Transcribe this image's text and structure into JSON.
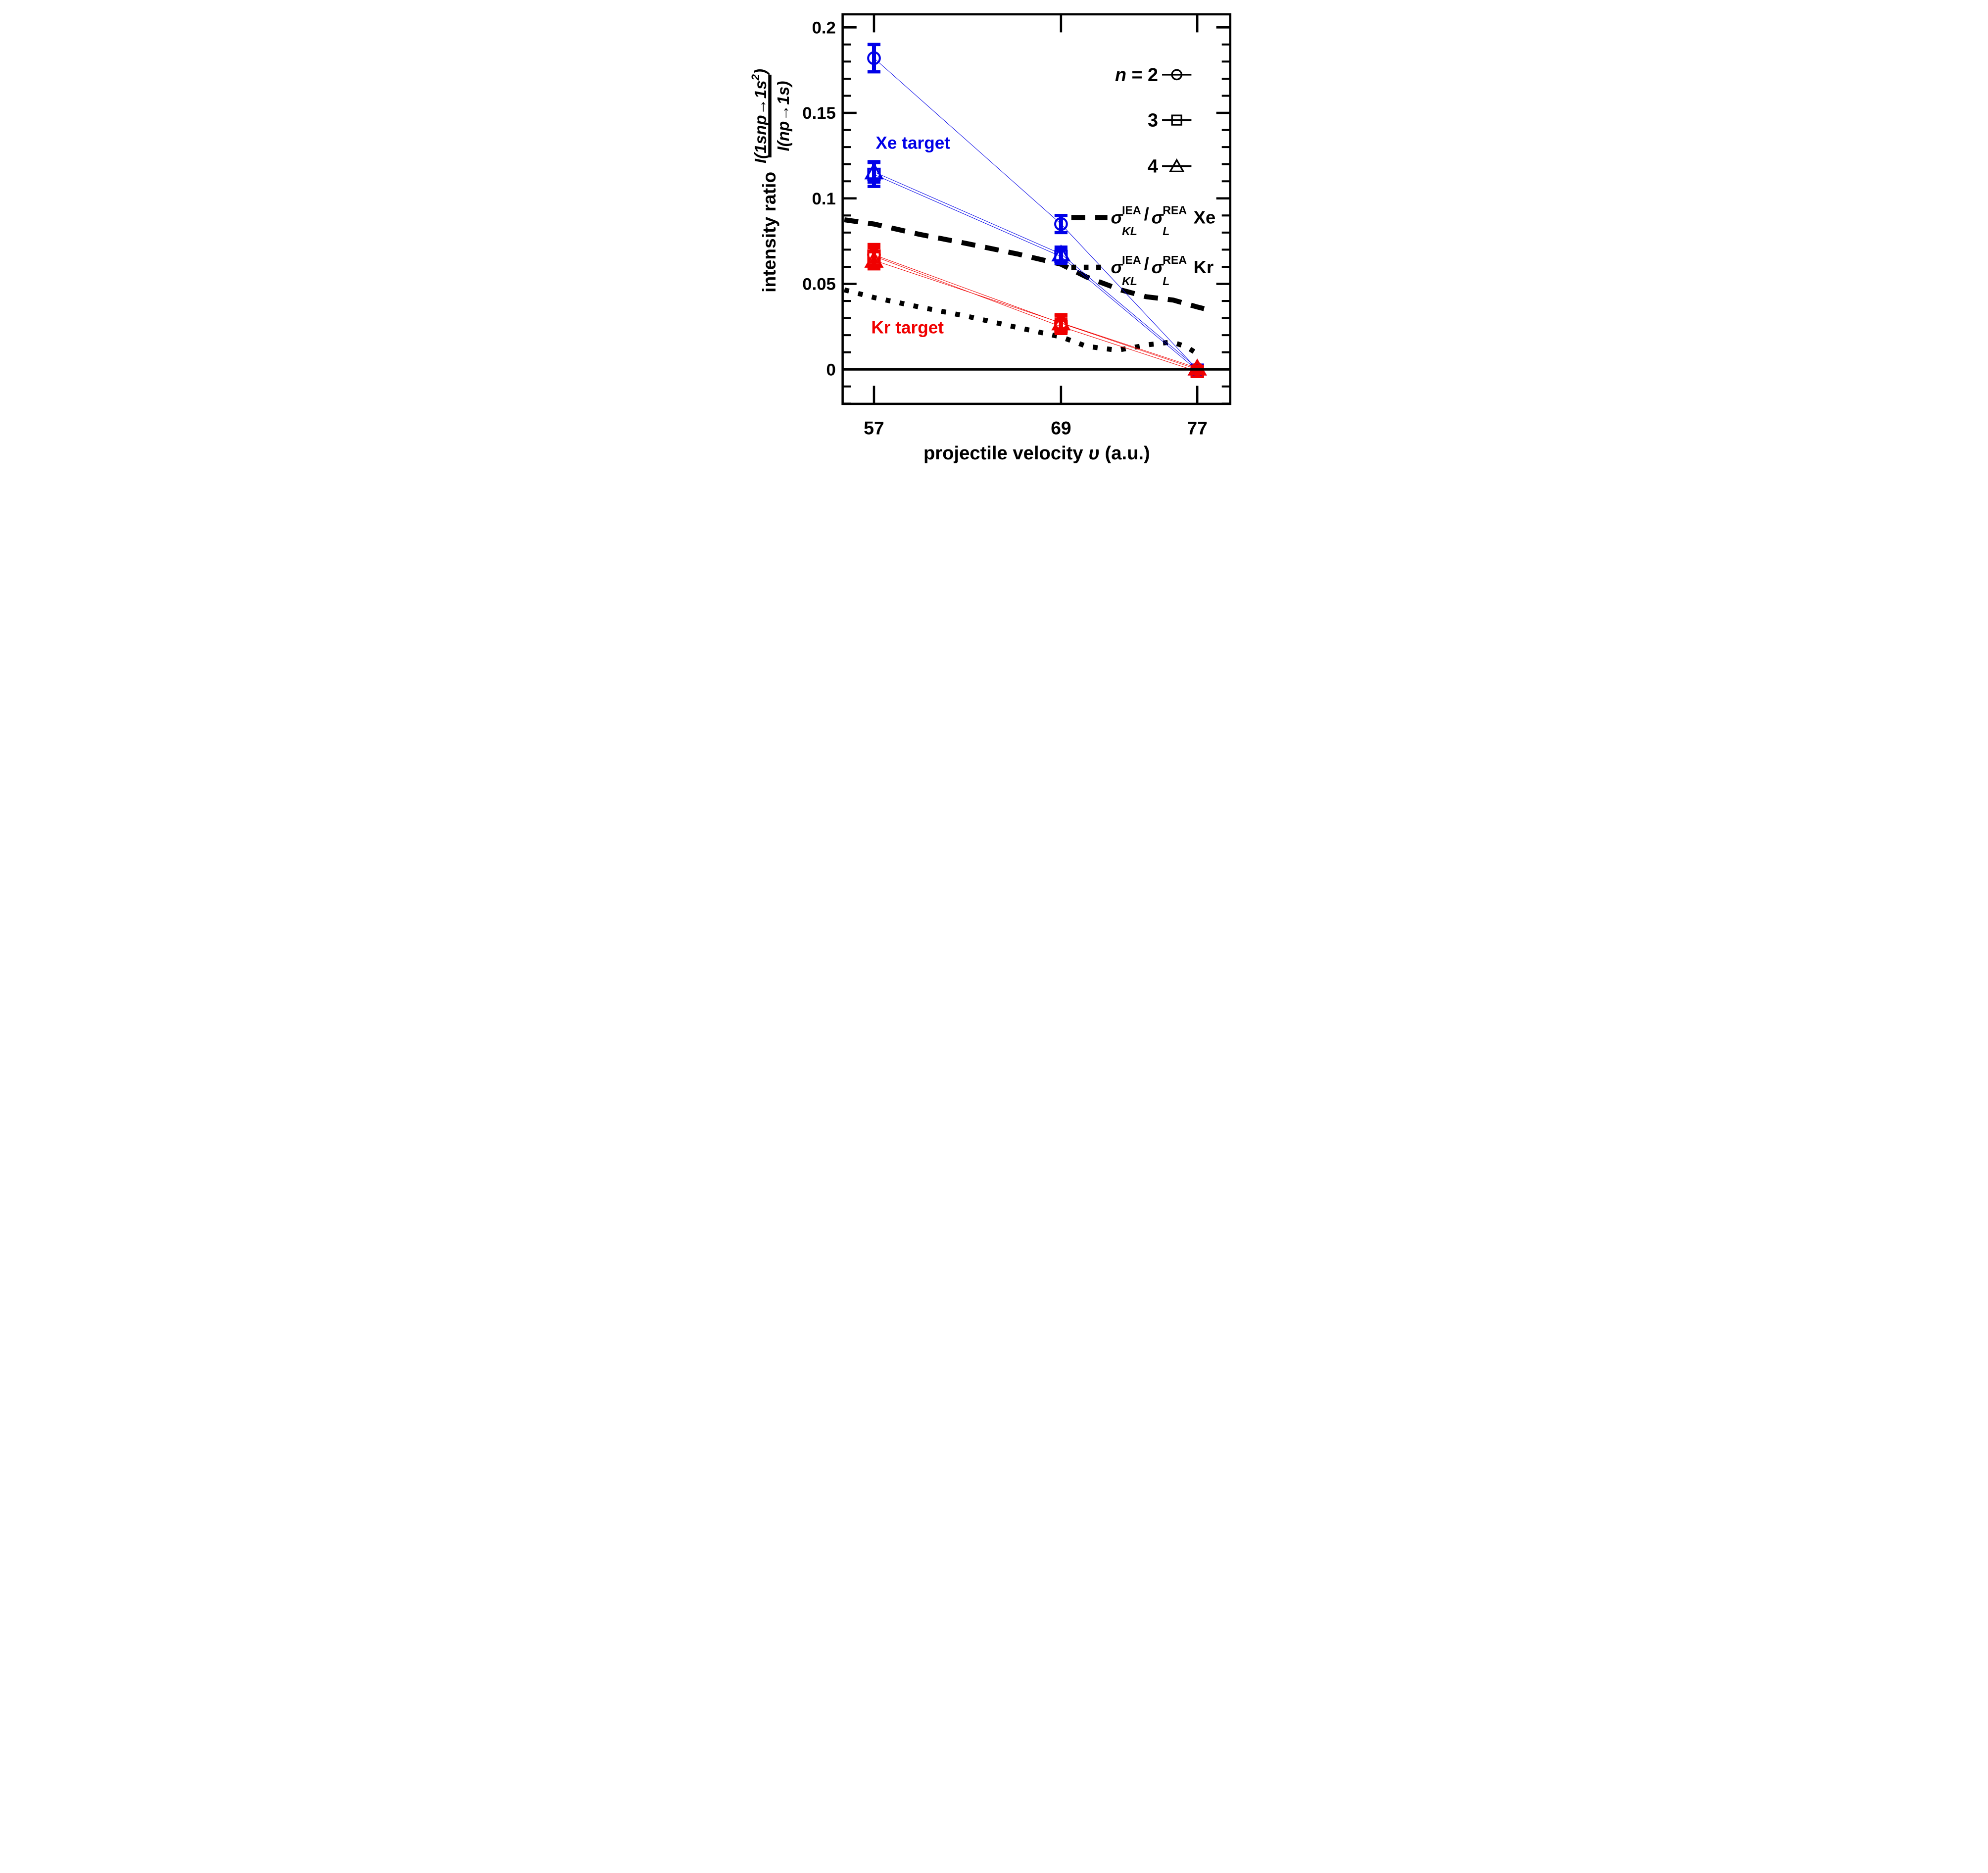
{
  "chart_data": {
    "type": "scatter",
    "title": "",
    "xlabel": {
      "prefix": "projectile velocity ",
      "symbol": "υ",
      "suffix": " (a.u.)"
    },
    "ylabel": {
      "prefix": "intensity ratio",
      "frac_numerator": "I(1snp→1s",
      "frac_numerator_sup": "2",
      "frac_numerator_close": ")",
      "frac_denominator": "I(np→1s)"
    },
    "x_tick_labels": [
      "57",
      "69",
      "77"
    ],
    "x_tick_values": [
      57,
      69,
      77
    ],
    "y_tick_labels": [
      "0.2",
      "0.15",
      "0.1",
      "0.05",
      "0"
    ],
    "y_tick_values": [
      0.2,
      0.15,
      0.1,
      0.05,
      0
    ],
    "y_minor_step": 0.01,
    "ylim": [
      -0.02,
      0.208
    ],
    "grid": false,
    "legend_position": "upper right",
    "colors": {
      "xe": "#0000e8",
      "kr": "#f00000",
      "theory": "#000000"
    },
    "series": [
      {
        "name": "Xe target, n=2",
        "target": "Xe",
        "n": 2,
        "marker": "circle",
        "color": "#0000e8",
        "x": [
          57,
          69,
          77
        ],
        "y": [
          0.182,
          0.085,
          0.0
        ],
        "yerr": [
          0.008,
          0.005,
          0.0015
        ]
      },
      {
        "name": "Xe target, n=3",
        "target": "Xe",
        "n": 3,
        "marker": "square",
        "color": "#0000e8",
        "x": [
          57,
          69,
          77
        ],
        "y": [
          0.114,
          0.066,
          -0.0005
        ],
        "yerr": [
          0.007,
          0.004,
          0.0015
        ]
      },
      {
        "name": "Xe target, n=4",
        "target": "Xe",
        "n": 4,
        "marker": "triangle",
        "color": "#0000e8",
        "x": [
          57,
          69,
          77
        ],
        "y": [
          0.1155,
          0.0675,
          0.0008
        ],
        "yerr": [
          0.006,
          0.004,
          0.0015
        ]
      },
      {
        "name": "Kr target, n=2",
        "target": "Kr",
        "n": 2,
        "marker": "circle",
        "color": "#f00000",
        "x": [
          57,
          69,
          77
        ],
        "y": [
          0.067,
          0.027,
          0.0
        ],
        "yerr": [
          0.006,
          0.005,
          0.0015
        ]
      },
      {
        "name": "Kr target, n=3",
        "target": "Kr",
        "n": 3,
        "marker": "square",
        "color": "#f00000",
        "x": [
          57,
          69,
          77
        ],
        "y": [
          0.0662,
          0.025,
          -0.0012
        ],
        "yerr": [
          0.005,
          0.004,
          0.0015
        ]
      },
      {
        "name": "Kr target, n=4",
        "target": "Kr",
        "n": 4,
        "marker": "triangle",
        "color": "#f00000",
        "x": [
          57,
          69,
          77
        ],
        "y": [
          0.0638,
          0.0272,
          0.0008
        ],
        "yerr": [
          0.005,
          0.004,
          0.0015
        ]
      }
    ],
    "theory_curves": [
      {
        "name": "sigma_KL_IEA / sigma_L_REA Xe",
        "style": "dashed",
        "points": [
          [
            55.1,
            0.0875
          ],
          [
            57,
            0.085
          ],
          [
            59.9,
            0.079
          ],
          [
            63,
            0.0735
          ],
          [
            66.2,
            0.0675
          ],
          [
            69,
            0.0615
          ],
          [
            70.5,
            0.054
          ],
          [
            72.5,
            0.0465
          ],
          [
            74,
            0.0425
          ],
          [
            75.6,
            0.0405
          ],
          [
            77,
            0.0365
          ],
          [
            77.4,
            0.0355
          ]
        ]
      },
      {
        "name": "sigma_KL_IEA / sigma_L_REA Kr",
        "style": "dotted",
        "points": [
          [
            55.1,
            0.0465
          ],
          [
            57,
            0.042
          ],
          [
            59.9,
            0.0365
          ],
          [
            63,
            0.031
          ],
          [
            66.2,
            0.0245
          ],
          [
            69,
            0.019
          ],
          [
            70.5,
            0.0135
          ],
          [
            72.3,
            0.0112
          ],
          [
            74.2,
            0.0145
          ],
          [
            75.5,
            0.016
          ],
          [
            76.3,
            0.0135
          ],
          [
            77.2,
            0.008
          ]
        ]
      }
    ],
    "annotations": [
      {
        "text": "Xe target",
        "color": "#0000e8",
        "x": 59.5,
        "y": 0.129
      },
      {
        "text": "Kr target",
        "color": "#f00000",
        "x": 59.15,
        "y": 0.0211
      }
    ],
    "legend": {
      "n_entries": [
        {
          "italic_part": "n",
          "rest": " = 2",
          "marker": "circle"
        },
        {
          "italic_part": "",
          "rest": "3",
          "marker": "square"
        },
        {
          "italic_part": "",
          "rest": "4",
          "marker": "triangle"
        }
      ],
      "theory_entries": [
        {
          "line_style": "dashed",
          "sigma": "σ",
          "sup_num": "IEA",
          "sub_num": "KL",
          "slash": "/",
          "sup_den": "REA",
          "sub_den": "L",
          "element": "Xe"
        },
        {
          "line_style": "dotted",
          "sigma": "σ",
          "sup_num": "IEA",
          "sub_num": "KL",
          "slash": "/",
          "sup_den": "REA",
          "sub_den": "L",
          "element": "Kr"
        }
      ]
    }
  }
}
